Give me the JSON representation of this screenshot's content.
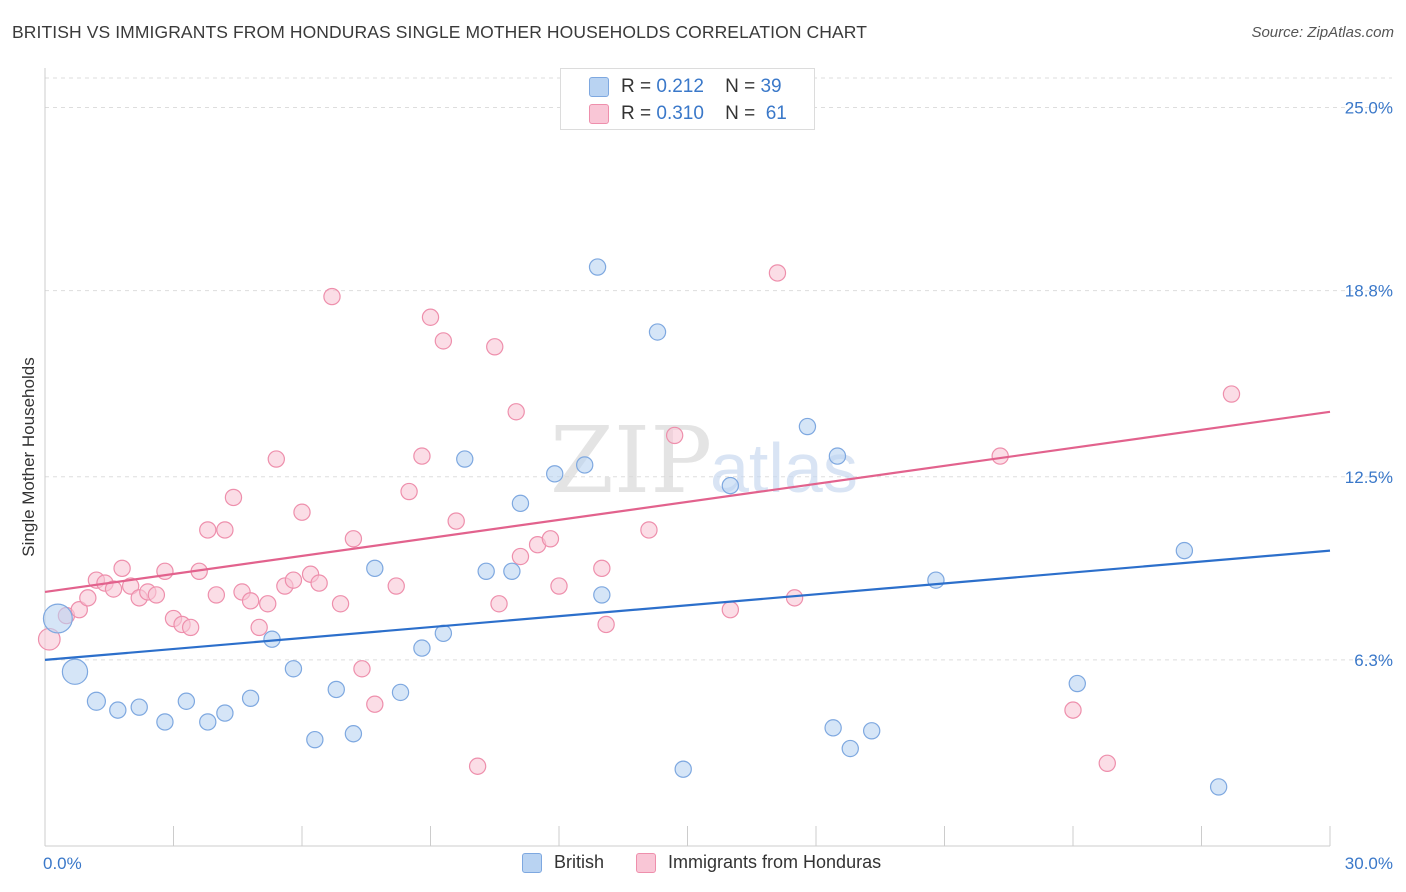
{
  "title": "BRITISH VS IMMIGRANTS FROM HONDURAS SINGLE MOTHER HOUSEHOLDS CORRELATION CHART",
  "source": "Source: ZipAtlas.com",
  "watermark": {
    "zip": "ZIP",
    "atlas": "atlas"
  },
  "legend": {
    "rows": [
      {
        "r_label": "R =",
        "r_value": "0.212",
        "n_label": "N =",
        "n_value": "39"
      },
      {
        "r_label": "R =",
        "r_value": "0.310",
        "n_label": "N =",
        "n_value": "61"
      }
    ]
  },
  "colors": {
    "british_fill": "#b9d3f2",
    "british_stroke": "#7ea8e0",
    "british_line": "#2c6fcb",
    "honduras_fill": "#f9c6d6",
    "honduras_stroke": "#ee8fac",
    "honduras_line": "#e2628d",
    "axis_label": "#3a78c9"
  },
  "chart_data": {
    "type": "scatter",
    "title": "BRITISH VS IMMIGRANTS FROM HONDURAS SINGLE MOTHER HOUSEHOLDS CORRELATION CHART",
    "xlabel": "",
    "ylabel": "Single Mother Households",
    "xlim": [
      0,
      30
    ],
    "ylim": [
      0,
      26
    ],
    "x_tick_labels": [
      "0.0%",
      "30.0%"
    ],
    "y_ticks": [
      6.3,
      12.5,
      18.8,
      25.0
    ],
    "y_tick_labels": [
      "6.3%",
      "12.5%",
      "18.8%",
      "25.0%"
    ],
    "grid": "horizontal dashed",
    "legend_position": "top-center",
    "series": [
      {
        "name": "British",
        "trend": [
          [
            0,
            6.3
          ],
          [
            30,
            10.0
          ]
        ],
        "points": [
          [
            0.3,
            7.7,
            1.6
          ],
          [
            0.7,
            5.9,
            1.4
          ],
          [
            1.2,
            4.9,
            1.0
          ],
          [
            1.7,
            4.6,
            0.9
          ],
          [
            2.2,
            4.7,
            0.9
          ],
          [
            2.8,
            4.2,
            0.9
          ],
          [
            3.3,
            4.9,
            0.9
          ],
          [
            3.8,
            4.2,
            0.9
          ],
          [
            4.2,
            4.5,
            0.9
          ],
          [
            4.8,
            5.0,
            0.9
          ],
          [
            5.3,
            7.0,
            0.9
          ],
          [
            5.8,
            6.0,
            0.9
          ],
          [
            6.3,
            3.6,
            0.9
          ],
          [
            6.8,
            5.3,
            0.9
          ],
          [
            7.2,
            3.8,
            0.9
          ],
          [
            7.7,
            9.4,
            0.9
          ],
          [
            8.3,
            5.2,
            0.9
          ],
          [
            8.8,
            6.7,
            0.9
          ],
          [
            9.3,
            7.2,
            0.9
          ],
          [
            9.8,
            13.1,
            0.9
          ],
          [
            10.3,
            9.3,
            0.9
          ],
          [
            10.9,
            9.3,
            0.9
          ],
          [
            11.1,
            11.6,
            0.9
          ],
          [
            11.9,
            12.6,
            0.9
          ],
          [
            12.6,
            12.9,
            0.9
          ],
          [
            12.9,
            19.6,
            0.9
          ],
          [
            13.0,
            8.5,
            0.9
          ],
          [
            14.3,
            17.4,
            0.9
          ],
          [
            14.9,
            2.6,
            0.9
          ],
          [
            16.0,
            12.2,
            0.9
          ],
          [
            17.8,
            14.2,
            0.9
          ],
          [
            18.4,
            4.0,
            0.9
          ],
          [
            18.5,
            13.2,
            0.9
          ],
          [
            18.8,
            3.3,
            0.9
          ],
          [
            19.3,
            3.9,
            0.9
          ],
          [
            20.8,
            9.0,
            0.9
          ],
          [
            24.1,
            5.5,
            0.9
          ],
          [
            26.6,
            10.0,
            0.9
          ],
          [
            27.4,
            2.0,
            0.9
          ]
        ]
      },
      {
        "name": "Immigrants from Honduras",
        "trend": [
          [
            0,
            8.6
          ],
          [
            30,
            14.7
          ]
        ],
        "points": [
          [
            0.1,
            7.0,
            1.2
          ],
          [
            0.5,
            7.8,
            0.9
          ],
          [
            0.8,
            8.0,
            0.9
          ],
          [
            1.0,
            8.4,
            0.9
          ],
          [
            1.2,
            9.0,
            0.9
          ],
          [
            1.4,
            8.9,
            0.9
          ],
          [
            1.6,
            8.7,
            0.9
          ],
          [
            1.8,
            9.4,
            0.9
          ],
          [
            2.0,
            8.8,
            0.9
          ],
          [
            2.2,
            8.4,
            0.9
          ],
          [
            2.4,
            8.6,
            0.9
          ],
          [
            2.6,
            8.5,
            0.9
          ],
          [
            2.8,
            9.3,
            0.9
          ],
          [
            3.0,
            7.7,
            0.9
          ],
          [
            3.2,
            7.5,
            0.9
          ],
          [
            3.4,
            7.4,
            0.9
          ],
          [
            3.6,
            9.3,
            0.9
          ],
          [
            3.8,
            10.7,
            0.9
          ],
          [
            4.0,
            8.5,
            0.9
          ],
          [
            4.2,
            10.7,
            0.9
          ],
          [
            4.4,
            11.8,
            0.9
          ],
          [
            4.6,
            8.6,
            0.9
          ],
          [
            4.8,
            8.3,
            0.9
          ],
          [
            5.0,
            7.4,
            0.9
          ],
          [
            5.2,
            8.2,
            0.9
          ],
          [
            5.4,
            13.1,
            0.9
          ],
          [
            5.6,
            8.8,
            0.9
          ],
          [
            5.8,
            9.0,
            0.9
          ],
          [
            6.0,
            11.3,
            0.9
          ],
          [
            6.2,
            9.2,
            0.9
          ],
          [
            6.4,
            8.9,
            0.9
          ],
          [
            6.7,
            18.6,
            0.9
          ],
          [
            6.9,
            8.2,
            0.9
          ],
          [
            7.2,
            10.4,
            0.9
          ],
          [
            7.4,
            6.0,
            0.9
          ],
          [
            7.7,
            4.8,
            0.9
          ],
          [
            8.2,
            8.8,
            0.9
          ],
          [
            8.5,
            12.0,
            0.9
          ],
          [
            8.8,
            13.2,
            0.9
          ],
          [
            9.0,
            17.9,
            0.9
          ],
          [
            9.3,
            17.1,
            0.9
          ],
          [
            9.6,
            11.0,
            0.9
          ],
          [
            10.1,
            2.7,
            0.9
          ],
          [
            10.5,
            16.9,
            0.9
          ],
          [
            10.6,
            8.2,
            0.9
          ],
          [
            11.0,
            14.7,
            0.9
          ],
          [
            11.1,
            9.8,
            0.9
          ],
          [
            11.5,
            10.2,
            0.9
          ],
          [
            11.8,
            10.4,
            0.9
          ],
          [
            12.0,
            8.8,
            0.9
          ],
          [
            13.0,
            9.4,
            0.9
          ],
          [
            13.1,
            7.5,
            0.9
          ],
          [
            14.1,
            10.7,
            0.9
          ],
          [
            14.7,
            13.9,
            0.9
          ],
          [
            16.0,
            8.0,
            0.9
          ],
          [
            17.1,
            19.4,
            0.9
          ],
          [
            17.5,
            8.4,
            0.9
          ],
          [
            22.3,
            13.2,
            0.9
          ],
          [
            24.0,
            4.6,
            0.9
          ],
          [
            24.8,
            2.8,
            0.9
          ],
          [
            27.7,
            15.3,
            0.9
          ]
        ]
      }
    ]
  },
  "bottom_legend": [
    "British",
    "Immigrants from Honduras"
  ]
}
